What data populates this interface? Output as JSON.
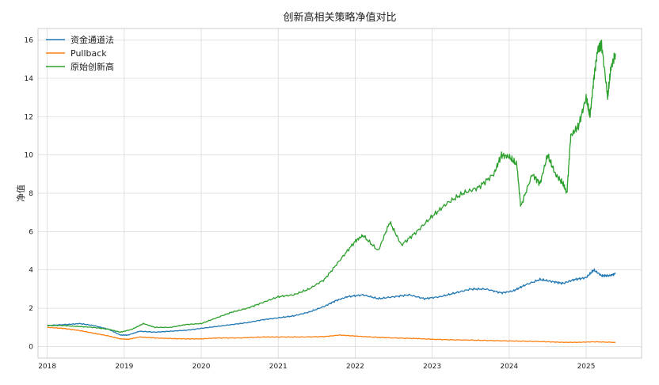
{
  "chart_data": {
    "type": "line",
    "title": "创新高相关策略净值对比",
    "xlabel": "",
    "ylabel": "净值",
    "xlim": [
      2017.88,
      2025.72
    ],
    "ylim": [
      -0.6,
      16.6
    ],
    "x_ticks": [
      2018,
      2019,
      2020,
      2021,
      2022,
      2023,
      2024,
      2025
    ],
    "x_tick_labels": [
      "2018",
      "2019",
      "2020",
      "2021",
      "2022",
      "2023",
      "2024",
      "2025"
    ],
    "y_ticks": [
      0,
      2,
      4,
      6,
      8,
      10,
      12,
      14,
      16
    ],
    "y_tick_labels": [
      "0",
      "2",
      "4",
      "6",
      "8",
      "10",
      "12",
      "14",
      "16"
    ],
    "grid": true,
    "legend": "top-left",
    "series": [
      {
        "name": "资金通道法",
        "color": "#1f77b4",
        "x": [
          2018.0,
          2018.25,
          2018.42,
          2018.6,
          2018.8,
          2018.95,
          2019.05,
          2019.2,
          2019.4,
          2019.6,
          2019.8,
          2020.0,
          2020.2,
          2020.4,
          2020.6,
          2020.8,
          2021.0,
          2021.2,
          2021.4,
          2021.6,
          2021.75,
          2021.9,
          2022.1,
          2022.3,
          2022.5,
          2022.7,
          2022.9,
          2023.1,
          2023.3,
          2023.5,
          2023.7,
          2023.9,
          2024.05,
          2024.2,
          2024.4,
          2024.55,
          2024.7,
          2024.85,
          2025.0,
          2025.1,
          2025.2,
          2025.3,
          2025.38
        ],
        "y": [
          1.1,
          1.15,
          1.2,
          1.1,
          0.9,
          0.6,
          0.6,
          0.8,
          0.75,
          0.8,
          0.85,
          0.95,
          1.05,
          1.15,
          1.25,
          1.4,
          1.5,
          1.6,
          1.8,
          2.1,
          2.4,
          2.6,
          2.7,
          2.5,
          2.6,
          2.7,
          2.5,
          2.6,
          2.8,
          3.0,
          3.0,
          2.8,
          2.9,
          3.2,
          3.5,
          3.4,
          3.3,
          3.5,
          3.6,
          4.0,
          3.7,
          3.7,
          3.8
        ]
      },
      {
        "name": "Pullback",
        "color": "#ff7f0e",
        "x": [
          2018.0,
          2018.2,
          2018.4,
          2018.6,
          2018.8,
          2018.95,
          2019.05,
          2019.2,
          2019.4,
          2019.6,
          2019.8,
          2020.0,
          2020.2,
          2020.5,
          2020.8,
          2021.0,
          2021.3,
          2021.6,
          2021.8,
          2022.0,
          2022.2,
          2022.5,
          2022.8,
          2023.0,
          2023.3,
          2023.6,
          2023.9,
          2024.2,
          2024.5,
          2024.7,
          2024.9,
          2025.1,
          2025.38
        ],
        "y": [
          1.0,
          0.95,
          0.85,
          0.7,
          0.55,
          0.4,
          0.38,
          0.5,
          0.45,
          0.42,
          0.4,
          0.4,
          0.45,
          0.45,
          0.5,
          0.5,
          0.5,
          0.52,
          0.6,
          0.55,
          0.5,
          0.45,
          0.42,
          0.38,
          0.35,
          0.33,
          0.3,
          0.28,
          0.25,
          0.22,
          0.22,
          0.25,
          0.22
        ]
      },
      {
        "name": "原始创新高",
        "color": "#2ca02c",
        "x": [
          2018.0,
          2018.2,
          2018.4,
          2018.6,
          2018.8,
          2018.95,
          2019.1,
          2019.25,
          2019.4,
          2019.6,
          2019.8,
          2020.0,
          2020.2,
          2020.4,
          2020.6,
          2020.8,
          2021.0,
          2021.2,
          2021.4,
          2021.6,
          2021.8,
          2022.0,
          2022.1,
          2022.3,
          2022.45,
          2022.6,
          2022.8,
          2023.0,
          2023.2,
          2023.4,
          2023.6,
          2023.8,
          2023.9,
          2024.0,
          2024.1,
          2024.15,
          2024.3,
          2024.4,
          2024.5,
          2024.6,
          2024.7,
          2024.75,
          2024.8,
          2024.9,
          2025.0,
          2025.05,
          2025.1,
          2025.15,
          2025.2,
          2025.28,
          2025.32,
          2025.38
        ],
        "y": [
          1.1,
          1.1,
          1.05,
          1.0,
          0.9,
          0.75,
          0.9,
          1.2,
          1.0,
          1.0,
          1.15,
          1.2,
          1.5,
          1.8,
          2.0,
          2.3,
          2.6,
          2.7,
          3.0,
          3.5,
          4.5,
          5.5,
          5.8,
          5.0,
          6.5,
          5.3,
          6.0,
          6.8,
          7.5,
          8.0,
          8.3,
          9.0,
          10.0,
          9.9,
          9.5,
          7.3,
          9.0,
          8.5,
          10.0,
          9.0,
          8.5,
          8.0,
          11.0,
          11.5,
          13.0,
          12.0,
          14.0,
          15.5,
          15.8,
          13.0,
          14.5,
          15.3
        ]
      }
    ]
  }
}
